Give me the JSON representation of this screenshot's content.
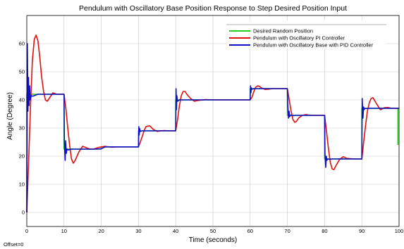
{
  "chart_data": {
    "type": "line",
    "title": "Pendulum with Oscillatory Base Position Response to Step Desired Position Input",
    "xlabel": "Time (seconds)",
    "ylabel": "Angle (Degree)",
    "xlim": [
      0,
      100
    ],
    "ylim": [
      -5,
      70
    ],
    "x_ticks": [
      "0",
      "10",
      "20",
      "30",
      "40",
      "50",
      "60",
      "70",
      "80",
      "90",
      "100"
    ],
    "y_ticks": [
      "0",
      "10",
      "20",
      "30",
      "40",
      "50",
      "60"
    ],
    "grid": true,
    "legend_position": "top-right",
    "footer_text": "Offset=0",
    "series": [
      {
        "name": "Desired Random Position",
        "color": "#22cc22",
        "x": [
          0,
          0,
          10,
          10,
          20,
          20,
          30,
          30,
          40,
          40,
          60,
          60,
          70,
          70,
          80,
          80,
          90,
          90,
          99.7,
          99.7
        ],
        "y": [
          0,
          42,
          42,
          22.5,
          22.5,
          23.3,
          23.3,
          29,
          29,
          40,
          40,
          44,
          44,
          34.5,
          34.5,
          19,
          19,
          37,
          37,
          24
        ]
      },
      {
        "name": "Pendulum with Oscillatory PI Controller",
        "color": "#e01010",
        "x": [
          0,
          0.5,
          1,
          1.5,
          2,
          2.5,
          3,
          3.5,
          4,
          4.5,
          5,
          5.5,
          6,
          7,
          8,
          9,
          10,
          10.5,
          11,
          11.5,
          12,
          12.5,
          13,
          14,
          15,
          16,
          17,
          18,
          19,
          20,
          21,
          22,
          23,
          24,
          25,
          26,
          27,
          28,
          29,
          30,
          30.5,
          31,
          31.5,
          32,
          33,
          34,
          35,
          36,
          37,
          38,
          39,
          40,
          40.5,
          41,
          41.5,
          42,
          42.5,
          43,
          44,
          45,
          46,
          48,
          50,
          55,
          60,
          60.5,
          61,
          61.5,
          62,
          62.5,
          63,
          64,
          65,
          66,
          68,
          70,
          70.5,
          71,
          71.5,
          72,
          72.5,
          73,
          74,
          75,
          76,
          78,
          80,
          80.5,
          81,
          81.5,
          82,
          82.5,
          83,
          84,
          85,
          86,
          88,
          90,
          90.5,
          91,
          91.5,
          92,
          92.5,
          93,
          94,
          95,
          96,
          97,
          98,
          100
        ],
        "y": [
          0,
          18,
          38,
          54,
          61.5,
          63,
          61,
          55,
          48,
          43,
          40,
          39.5,
          40.5,
          42.5,
          42,
          42,
          42,
          37,
          30,
          24,
          19,
          17.5,
          18.5,
          21.5,
          23.5,
          23,
          22.5,
          22.5,
          23,
          23.3,
          23.5,
          23.3,
          23.2,
          23.3,
          23.3,
          23.3,
          23.3,
          23.3,
          23.3,
          23.3,
          25,
          27,
          29,
          30.5,
          30.8,
          29.5,
          28.8,
          29,
          29.1,
          29,
          29,
          29,
          33,
          38,
          41.5,
          43,
          43,
          42,
          40.5,
          39.5,
          39.8,
          40.1,
          40,
          40,
          40,
          41,
          43,
          44.5,
          45,
          44.8,
          44.3,
          43.7,
          43.8,
          44,
          44,
          44,
          40,
          36,
          33,
          32,
          32.5,
          33.5,
          34.5,
          34.8,
          34.5,
          34.5,
          34.5,
          29,
          23,
          18,
          15.5,
          15.2,
          16.5,
          18.8,
          19.8,
          19.2,
          19,
          19,
          25,
          31,
          36,
          39,
          40.5,
          40.8,
          38.5,
          36.5,
          37.2,
          37.3,
          37,
          37
        ]
      },
      {
        "name": "Pendulum with Oscillatory Base with PID Controller",
        "color": "#1010c8",
        "x": [
          0,
          0.15,
          0.3,
          0.45,
          0.6,
          0.75,
          0.9,
          1.2,
          1.6,
          2,
          3,
          5,
          7,
          9,
          10,
          10.1,
          10.3,
          10.45,
          10.6,
          10.8,
          11.2,
          12,
          14,
          16,
          18,
          20,
          21,
          25,
          30,
          30.1,
          30.2,
          30.3,
          30.5,
          31,
          32,
          35,
          40,
          40.1,
          40.2,
          40.3,
          40.5,
          41,
          42,
          45,
          50,
          55,
          60,
          60.1,
          60.2,
          60.3,
          60.5,
          61,
          62,
          65,
          70,
          70.1,
          70.3,
          70.45,
          70.6,
          70.8,
          71.5,
          72,
          75,
          80,
          80.1,
          80.3,
          80.45,
          80.6,
          80.8,
          81.5,
          82,
          85,
          90,
          90.1,
          90.3,
          90.45,
          90.6,
          90.8,
          91.5,
          92,
          95,
          100
        ],
        "y": [
          0,
          60,
          36,
          48,
          38,
          45,
          40,
          41.5,
          41.3,
          41.5,
          42,
          42,
          42,
          42,
          42,
          25,
          18.5,
          25.5,
          21,
          22.5,
          22.2,
          22.5,
          22.5,
          22.5,
          22.5,
          22.6,
          23.3,
          23.3,
          23.3,
          30.5,
          27.5,
          29.8,
          28.8,
          29,
          29,
          29,
          29,
          44,
          36.5,
          41.5,
          39.5,
          40,
          40,
          40,
          40,
          40,
          40,
          45,
          42.5,
          44.3,
          43.8,
          44,
          44,
          44,
          44,
          38.5,
          33.5,
          36,
          34,
          34.6,
          34.4,
          34.5,
          34.5,
          34.5,
          21,
          16,
          20,
          18.5,
          19,
          18.9,
          19,
          19,
          19,
          40.5,
          33.5,
          37.5,
          36.5,
          37,
          36.9,
          37,
          37,
          37
        ]
      }
    ]
  }
}
